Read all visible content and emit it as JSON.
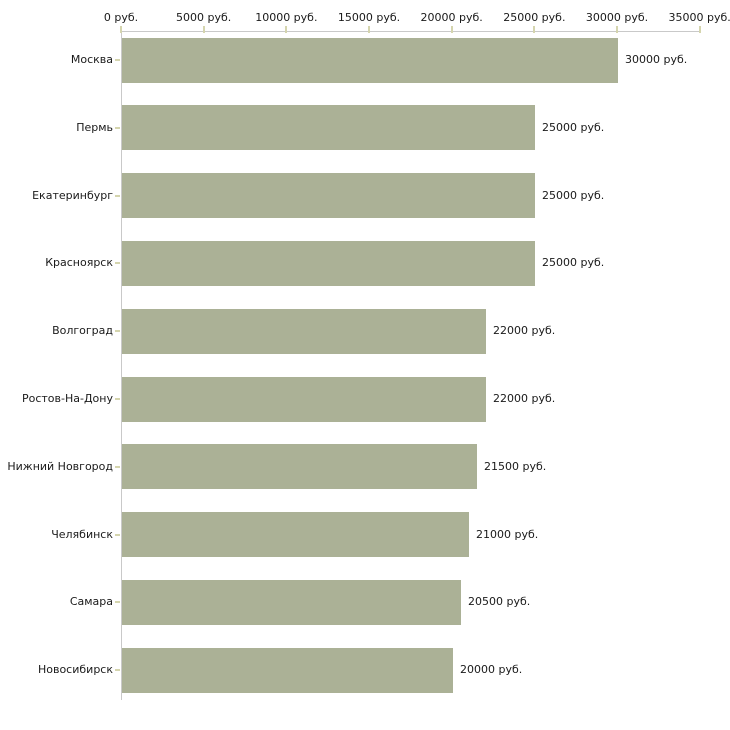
{
  "chart_data": {
    "type": "bar",
    "orientation": "horizontal",
    "title": "",
    "xlabel": "",
    "ylabel": "",
    "unit": "руб.",
    "categories": [
      "Москва",
      "Пермь",
      "Екатеринбург",
      "Красноярск",
      "Волгоград",
      "Ростов-На-Дону",
      "Нижний Новгород",
      "Челябинск",
      "Самара",
      "Новосибирск"
    ],
    "values": [
      30000,
      25000,
      25000,
      25000,
      22000,
      22000,
      21500,
      21000,
      20500,
      20000
    ],
    "value_labels": [
      "30000 руб.",
      "25000 руб.",
      "25000 руб.",
      "25000 руб.",
      "22000 руб.",
      "22000 руб.",
      "21500 руб.",
      "21000 руб.",
      "20500 руб.",
      "20000 руб."
    ],
    "x_ticks": [
      0,
      5000,
      10000,
      15000,
      20000,
      25000,
      30000,
      35000
    ],
    "x_tick_labels": [
      "0 руб.",
      "5000 руб.",
      "10000 руб.",
      "15000 руб.",
      "20000 руб.",
      "25000 руб.",
      "30000 руб.",
      "35000 руб."
    ],
    "xlim": [
      0,
      35000
    ],
    "grid": false,
    "legend": null,
    "colors": {
      "bar": "#abb196",
      "axis": "#c9c9c9",
      "tick": "#d5d5ae",
      "text": "#1a1a1a"
    }
  }
}
